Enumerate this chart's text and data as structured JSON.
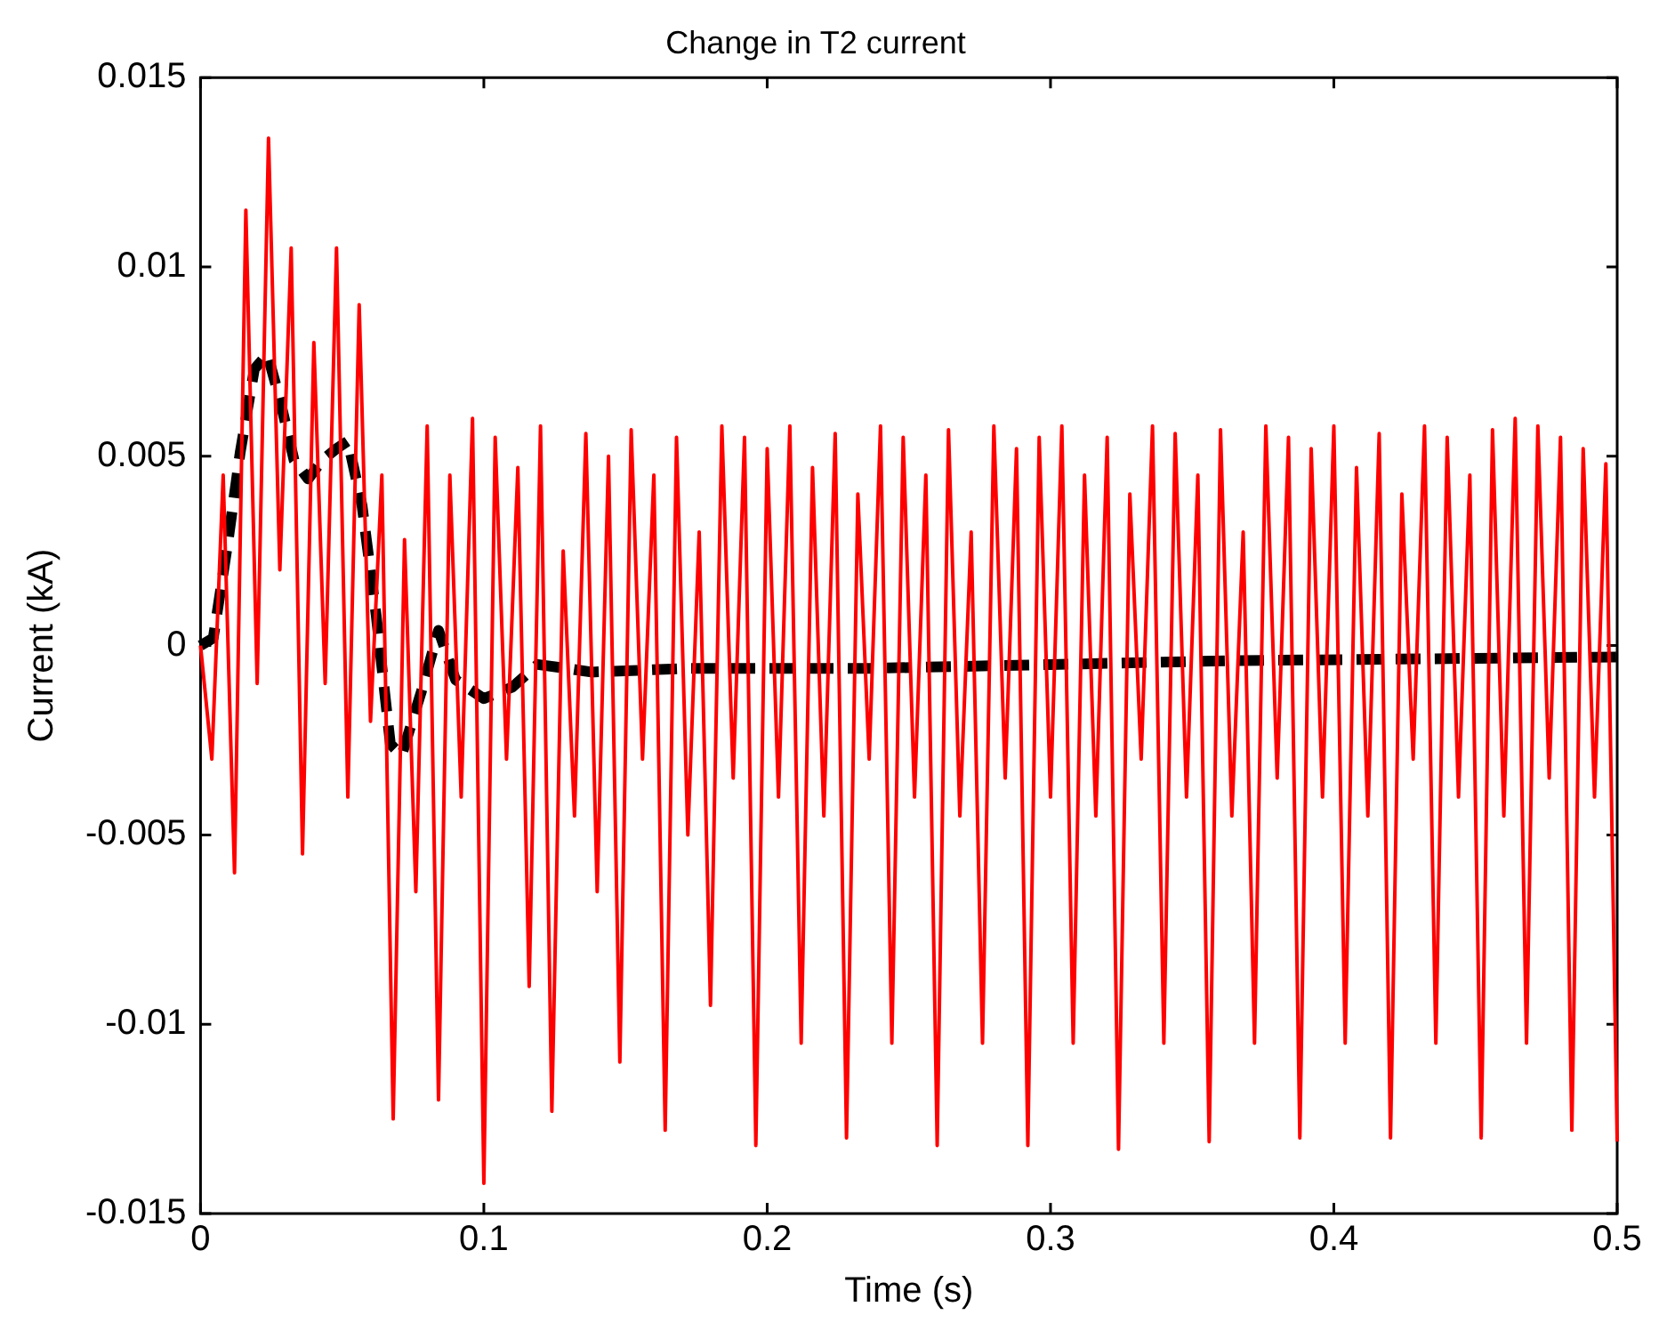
{
  "chart_data": {
    "type": "line",
    "title": "Change in T2 current",
    "xlabel": "Time (s)",
    "ylabel": "Current (kA)",
    "xlim": [
      0,
      0.5
    ],
    "xticks": [
      0,
      0.1,
      0.2,
      0.3,
      0.4,
      0.5
    ],
    "ylim": [
      -0.015,
      0.015
    ],
    "yticks": [
      -0.015,
      -0.01,
      -0.005,
      0,
      0.005,
      0.01,
      0.015
    ],
    "grid": false,
    "legend": false,
    "marker": "none",
    "series": [
      {
        "color": "#ff0000",
        "line_style": "solid",
        "x": [
          0,
          0.004,
          0.008,
          0.012,
          0.016,
          0.02,
          0.024,
          0.028,
          0.032,
          0.036,
          0.04,
          0.044,
          0.048,
          0.052,
          0.056,
          0.06,
          0.064,
          0.068,
          0.072,
          0.076,
          0.08,
          0.084,
          0.088,
          0.092,
          0.096,
          0.1,
          0.104,
          0.108,
          0.112,
          0.116,
          0.12,
          0.124,
          0.128,
          0.132,
          0.136,
          0.14,
          0.144,
          0.148,
          0.152,
          0.156,
          0.16,
          0.164,
          0.168,
          0.172,
          0.176,
          0.18,
          0.184,
          0.188,
          0.192,
          0.196,
          0.2,
          0.204,
          0.208,
          0.212,
          0.216,
          0.22,
          0.224,
          0.228,
          0.232,
          0.236,
          0.24,
          0.244,
          0.248,
          0.252,
          0.256,
          0.26,
          0.264,
          0.268,
          0.272,
          0.276,
          0.28,
          0.284,
          0.288,
          0.292,
          0.296,
          0.3,
          0.304,
          0.308,
          0.312,
          0.316,
          0.32,
          0.324,
          0.328,
          0.332,
          0.336,
          0.34,
          0.344,
          0.348,
          0.352,
          0.356,
          0.36,
          0.364,
          0.368,
          0.372,
          0.376,
          0.38,
          0.384,
          0.388,
          0.392,
          0.396,
          0.4,
          0.404,
          0.408,
          0.412,
          0.416,
          0.42,
          0.424,
          0.428,
          0.432,
          0.436,
          0.44,
          0.444,
          0.448,
          0.452,
          0.456,
          0.46,
          0.464,
          0.468,
          0.472,
          0.476,
          0.48,
          0.484,
          0.488,
          0.492,
          0.496,
          0.5
        ],
        "values": [
          0,
          -0.003,
          0.0045,
          -0.006,
          0.0115,
          -0.001,
          0.0134,
          0.002,
          0.0105,
          -0.0055,
          0.008,
          -0.001,
          0.0105,
          -0.004,
          0.009,
          -0.002,
          0.0045,
          -0.0125,
          0.0028,
          -0.0065,
          0.0058,
          -0.012,
          0.0045,
          -0.004,
          0.006,
          -0.0142,
          0.0055,
          -0.003,
          0.0047,
          -0.009,
          0.0058,
          -0.0123,
          0.0025,
          -0.0045,
          0.0056,
          -0.0065,
          0.005,
          -0.011,
          0.0057,
          -0.003,
          0.0045,
          -0.0128,
          0.0055,
          -0.005,
          0.003,
          -0.0095,
          0.0058,
          -0.0035,
          0.0055,
          -0.0132,
          0.0052,
          -0.004,
          0.0058,
          -0.0105,
          0.0047,
          -0.0045,
          0.0056,
          -0.013,
          0.004,
          -0.003,
          0.0058,
          -0.0105,
          0.0055,
          -0.004,
          0.0045,
          -0.0132,
          0.0057,
          -0.0045,
          0.003,
          -0.0105,
          0.0058,
          -0.0035,
          0.0052,
          -0.0132,
          0.0055,
          -0.004,
          0.0058,
          -0.0105,
          0.0045,
          -0.0045,
          0.0055,
          -0.0133,
          0.004,
          -0.003,
          0.0058,
          -0.0105,
          0.0056,
          -0.004,
          0.0045,
          -0.0131,
          0.0057,
          -0.0045,
          0.003,
          -0.0105,
          0.0058,
          -0.0035,
          0.0055,
          -0.013,
          0.0052,
          -0.004,
          0.0058,
          -0.0105,
          0.0047,
          -0.0045,
          0.0056,
          -0.013,
          0.004,
          -0.003,
          0.0058,
          -0.0105,
          0.0055,
          -0.004,
          0.0045,
          -0.013,
          0.0057,
          -0.0045,
          0.006,
          -0.0105,
          0.0058,
          -0.0035,
          0.0055,
          -0.0128,
          0.0052,
          -0.004,
          0.0048,
          -0.0131
        ]
      },
      {
        "color": "#000000",
        "line_style": "dashed",
        "x": [
          0,
          0.0045,
          0.0096,
          0.014,
          0.019,
          0.0236,
          0.028,
          0.033,
          0.038,
          0.043,
          0.048,
          0.052,
          0.057,
          0.062,
          0.067,
          0.071,
          0.078,
          0.084,
          0.09,
          0.1,
          0.11,
          0.119,
          0.129,
          0.138,
          0.173,
          0.237,
          0.3,
          0.364,
          0.5
        ],
        "values": [
          0,
          0.0002,
          0.0027,
          0.0051,
          0.0073,
          0.0077,
          0.0065,
          0.0049,
          0.0044,
          0.0049,
          0.0052,
          0.0054,
          0.0037,
          0.0008,
          -0.0026,
          -0.0029,
          -0.0012,
          0.0004,
          -0.0009,
          -0.0014,
          -0.0011,
          -0.0005,
          -0.0006,
          -0.0007,
          -0.0006,
          -0.0006,
          -0.0005,
          -0.0004,
          -0.0003
        ]
      }
    ]
  }
}
